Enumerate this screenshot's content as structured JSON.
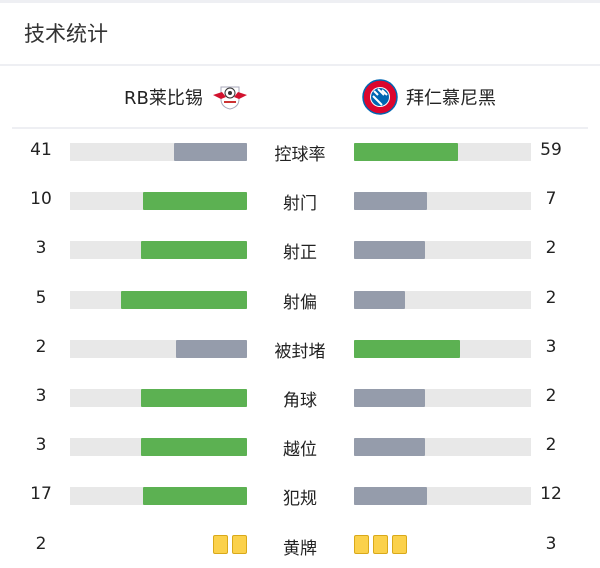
{
  "title": "技术统计",
  "home": {
    "name": "RB莱比锡",
    "logo": "rb-leipzig-logo"
  },
  "away": {
    "name": "拜仁慕尼黑",
    "logo": "bayern-munich-logo"
  },
  "colors": {
    "leader": "#5cb152",
    "trailer": "#959cab",
    "track": "#e8e8e8",
    "card": "#fbd14b"
  },
  "stats": [
    {
      "label": "控球率",
      "home": "41",
      "away": "59"
    },
    {
      "label": "射门",
      "home": "10",
      "away": "7"
    },
    {
      "label": "射正",
      "home": "3",
      "away": "2"
    },
    {
      "label": "射偏",
      "home": "5",
      "away": "2"
    },
    {
      "label": "被封堵",
      "home": "2",
      "away": "3"
    },
    {
      "label": "角球",
      "home": "3",
      "away": "2"
    },
    {
      "label": "越位",
      "home": "3",
      "away": "2"
    },
    {
      "label": "犯规",
      "home": "17",
      "away": "12"
    }
  ],
  "yellow_cards": {
    "label": "黄牌",
    "home": "2",
    "away": "3"
  }
}
